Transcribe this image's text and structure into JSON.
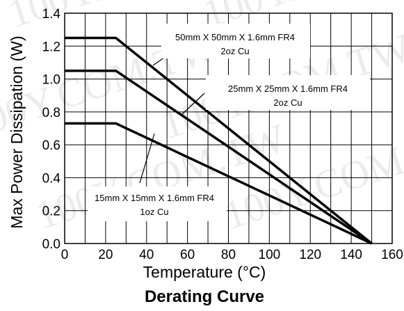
{
  "chart_data": {
    "type": "line",
    "title": "Derating Curve",
    "xlabel": "Temperature (°C)",
    "ylabel": "Max Power Dissipation (W)",
    "xlim": [
      0,
      160
    ],
    "ylim": [
      0,
      1.4
    ],
    "xticks": [
      0,
      20,
      40,
      60,
      80,
      100,
      120,
      140,
      160
    ],
    "yticks": [
      0.0,
      0.2,
      0.4,
      0.6,
      0.8,
      1.0,
      1.2,
      1.4
    ],
    "xtick_labels": [
      "0",
      "20",
      "40",
      "60",
      "80",
      "100",
      "120",
      "140",
      "160"
    ],
    "ytick_labels": [
      "0.0",
      "0.2",
      "0.4",
      "0.6",
      "0.8",
      "1.0",
      "1.2",
      "1.4"
    ],
    "grid": true,
    "series": [
      {
        "name": "50mm X 50mm X 1.6mm FR4 2oz Cu",
        "x": [
          0,
          25,
          150
        ],
        "y": [
          1.25,
          1.25,
          0.0
        ]
      },
      {
        "name": "25mm X 25mm X 1.6mm FR4 2oz Cu",
        "x": [
          0,
          25,
          150
        ],
        "y": [
          1.05,
          1.05,
          0.0
        ]
      },
      {
        "name": "15mm X 15mm X 1.6mm FR4 1oz Cu",
        "x": [
          0,
          25,
          150
        ],
        "y": [
          0.73,
          0.73,
          0.0
        ]
      }
    ],
    "annotations": [
      {
        "line1": "50mm X 50mm X 1.6mm FR4",
        "line2": "2oz Cu",
        "series": 0
      },
      {
        "line1": "25mm X 25mm X 1.6mm FR4",
        "line2": "2oz Cu",
        "series": 1
      },
      {
        "line1": "15mm X 15mm X 1.6mm FR4",
        "line2": "1oz Cu",
        "series": 2
      }
    ],
    "watermark": "100Y.COM.TW"
  }
}
